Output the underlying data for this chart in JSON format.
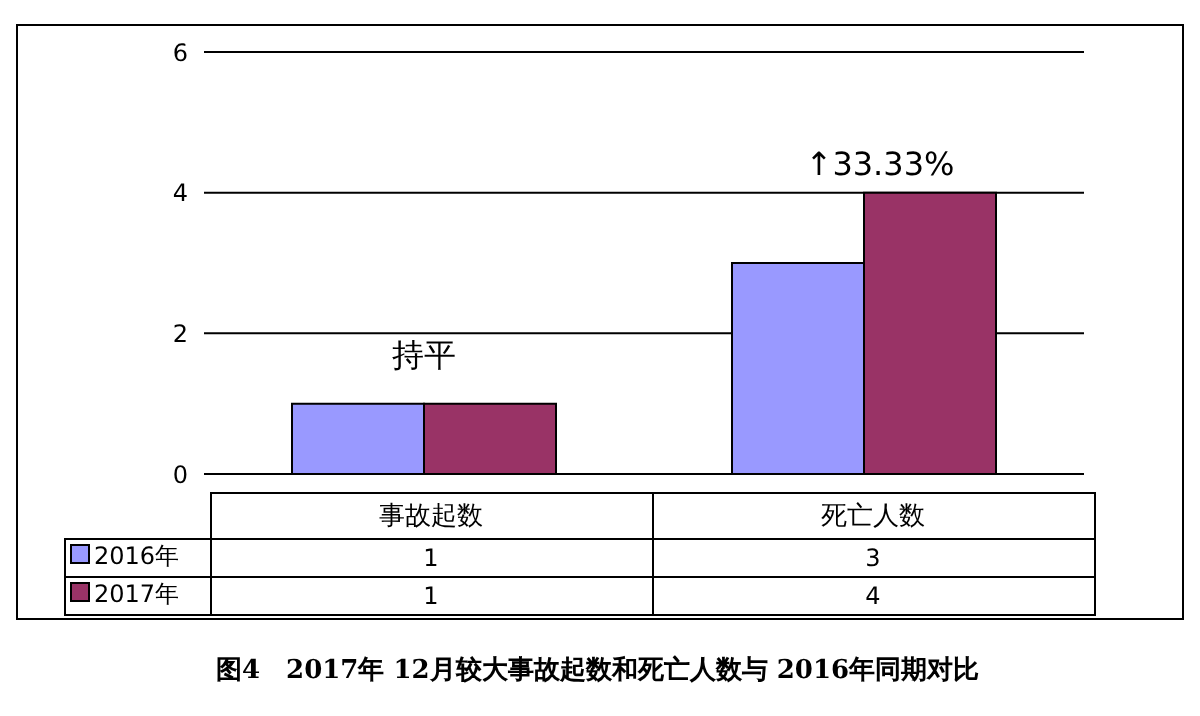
{
  "chart_data": {
    "type": "bar",
    "title": "图4　2017年 12月较大事故起数和死亡人数与 2016年同期对比",
    "categories": [
      "事故起数",
      "死亡人数"
    ],
    "series": [
      {
        "name": "2016年",
        "color": "#9999ff",
        "values": [
          1,
          3
        ]
      },
      {
        "name": "2017年",
        "color": "#993366",
        "values": [
          1,
          4
        ]
      }
    ],
    "ylim": [
      0,
      6
    ],
    "yticks": [
      0,
      2,
      4,
      6
    ],
    "grid": "y",
    "legend": "bottom",
    "data_labels": true,
    "annotations": [
      "持平",
      {
        "text": "↑33.33%",
        "x": "死亡人数",
        "y": 4
      }
    ]
  }
}
